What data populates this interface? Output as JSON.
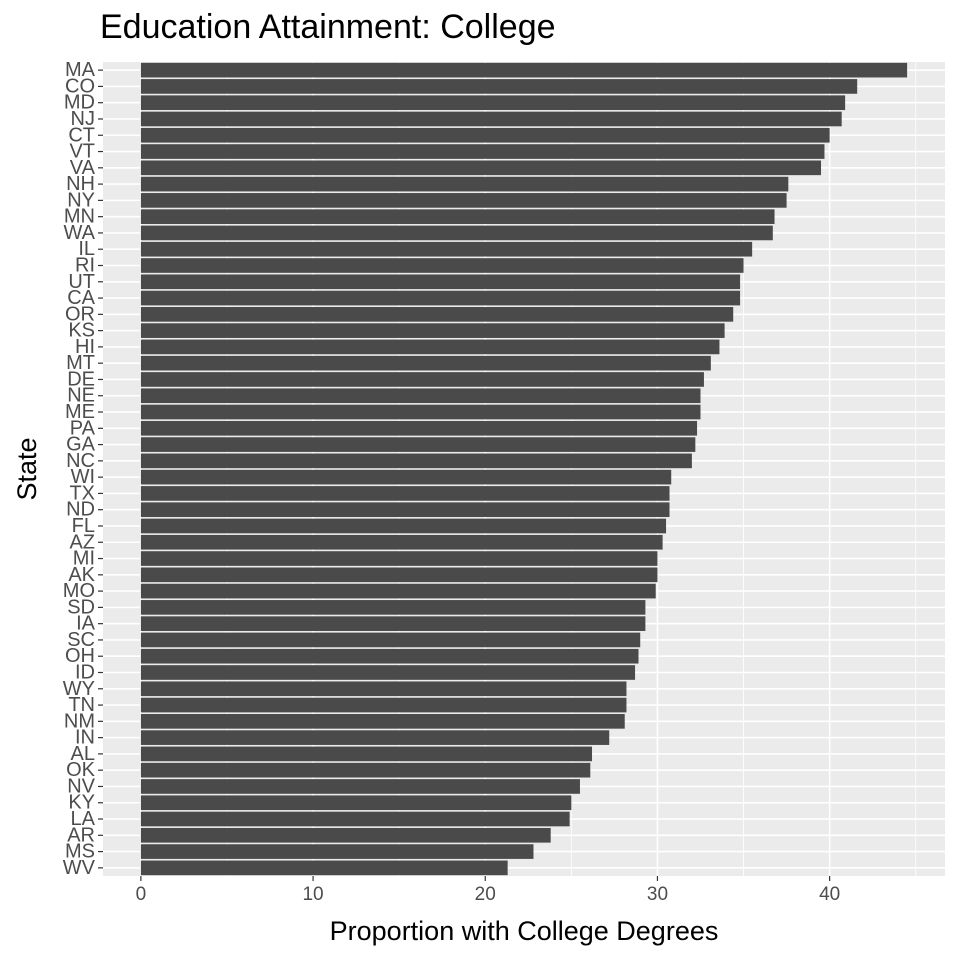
{
  "chart_data": {
    "type": "bar",
    "orientation": "horizontal",
    "title": "Education Attainment: College",
    "xlabel": "Proportion with College Degrees",
    "ylabel": "State",
    "xlim": [
      -2.2,
      46.7
    ],
    "x_ticks": [
      0,
      10,
      20,
      30,
      40
    ],
    "x_tick_labels": [
      "0",
      "10",
      "20",
      "30",
      "40"
    ],
    "grid": true,
    "legend": "none",
    "categories": [
      "MA",
      "CO",
      "MD",
      "NJ",
      "CT",
      "VT",
      "VA",
      "NH",
      "NY",
      "MN",
      "WA",
      "IL",
      "RI",
      "UT",
      "CA",
      "OR",
      "KS",
      "HI",
      "MT",
      "DE",
      "NE",
      "ME",
      "PA",
      "GA",
      "NC",
      "WI",
      "TX",
      "ND",
      "FL",
      "AZ",
      "MI",
      "AK",
      "MO",
      "SD",
      "IA",
      "SC",
      "OH",
      "ID",
      "WY",
      "TN",
      "NM",
      "IN",
      "AL",
      "OK",
      "NV",
      "KY",
      "LA",
      "AR",
      "MS",
      "WV"
    ],
    "values": [
      44.5,
      41.6,
      40.9,
      40.7,
      40.0,
      39.7,
      39.5,
      37.6,
      37.5,
      36.8,
      36.7,
      35.5,
      35.0,
      34.8,
      34.8,
      34.4,
      33.9,
      33.6,
      33.1,
      32.7,
      32.5,
      32.5,
      32.3,
      32.2,
      32.0,
      30.8,
      30.7,
      30.7,
      30.5,
      30.3,
      30.0,
      30.0,
      29.9,
      29.3,
      29.3,
      29.0,
      28.9,
      28.7,
      28.2,
      28.2,
      28.1,
      27.2,
      26.2,
      26.1,
      25.5,
      25.0,
      24.9,
      23.8,
      22.8,
      21.3
    ],
    "colors": {
      "bar": "#4a4a4a",
      "panel": "#ebebeb",
      "grid": "#ffffff",
      "tick_text": "#4d4d4d",
      "label_text": "#000000"
    }
  }
}
